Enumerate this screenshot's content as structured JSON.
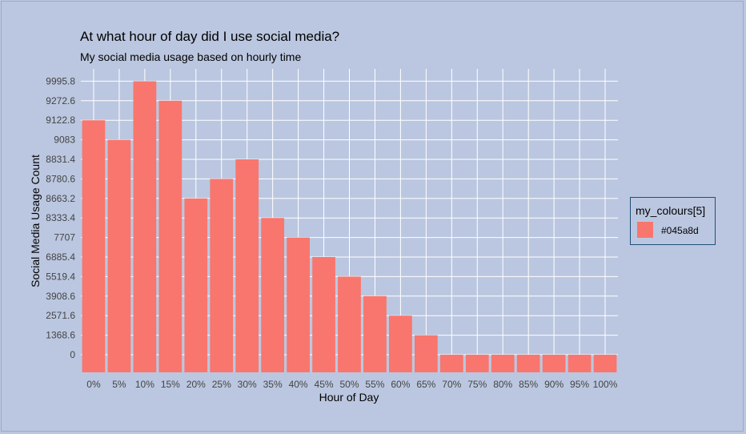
{
  "chart_data": {
    "type": "bar",
    "title": "At what hour of day did I use social media?",
    "subtitle": "My social media usage based on hourly time",
    "xlabel": "Hour of Day",
    "ylabel": "Social Media Usage Count",
    "categories": [
      "0%",
      "5%",
      "10%",
      "15%",
      "20%",
      "25%",
      "30%",
      "35%",
      "40%",
      "45%",
      "50%",
      "55%",
      "60%",
      "65%",
      "70%",
      "75%",
      "80%",
      "85%",
      "90%",
      "95%",
      "100%"
    ],
    "y_tick_labels": [
      "0",
      "1368.6",
      "2571.6",
      "3908.6",
      "5519.4",
      "6885.4",
      "7707",
      "8333.4",
      "8663.2",
      "8780.6",
      "8831.4",
      "9083",
      "9122.8",
      "9272.6",
      "9995.8"
    ],
    "values": [
      9122.8,
      9083,
      9995.8,
      9272.6,
      8663.2,
      8780.6,
      8831.4,
      8333.4,
      7707,
      6885.4,
      5519.4,
      3908.6,
      2571.6,
      1368.6,
      0,
      0,
      0,
      0,
      0,
      0,
      0
    ],
    "bar_color": "#f8766d",
    "grid": true,
    "legend": {
      "title": "my_colours[5]",
      "entries": [
        {
          "label": "#045a8d",
          "color": "#f8766d"
        }
      ],
      "position": "right"
    }
  },
  "colors": {
    "background": "#bbc7e0",
    "grid_major": "#ffffff",
    "legend_border": "#1f4f78"
  }
}
